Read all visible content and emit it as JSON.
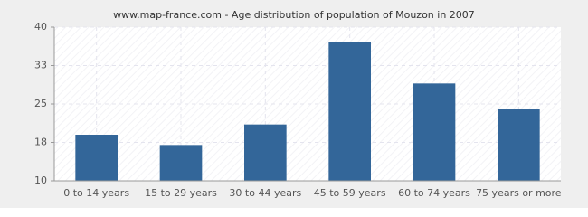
{
  "chart_data": {
    "type": "bar",
    "title": "www.map-france.com - Age distribution of population of Mouzon in 2007",
    "categories": [
      "0 to 14 years",
      "15 to 29 years",
      "30 to 44 years",
      "45 to 59 years",
      "60 to 74 years",
      "75 years or more"
    ],
    "values": [
      19,
      17,
      21,
      37,
      29,
      24
    ],
    "color": "#336699",
    "ylim": [
      10,
      40
    ],
    "yticks": [
      10,
      {
        "value": 17.5,
        "label": "18"
      },
      25,
      {
        "value": 32.5,
        "label": "33"
      },
      40
    ],
    "grid": true
  }
}
